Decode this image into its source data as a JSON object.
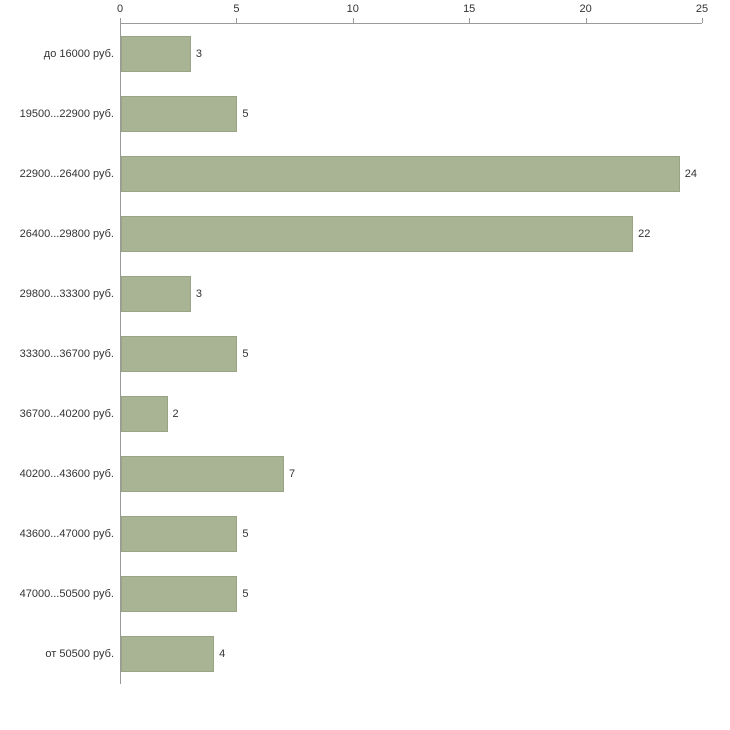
{
  "chart_data": {
    "type": "bar",
    "orientation": "horizontal",
    "title": "",
    "xlabel": "",
    "ylabel": "",
    "legend": "none",
    "grid": "off",
    "axis_position": "top",
    "xlim": [
      0,
      25
    ],
    "xticks": [
      "0",
      "5",
      "10",
      "15",
      "20",
      "25"
    ],
    "xtick_values": [
      0,
      5,
      10,
      15,
      20,
      25
    ],
    "categories": [
      "до 16000 руб.",
      "19500...22900 руб.",
      "22900...26400 руб.",
      "26400...29800 руб.",
      "29800...33300 руб.",
      "33300...36700 руб.",
      "36700...40200 руб.",
      "40200...43600 руб.",
      "43600...47000 руб.",
      "47000...50500 руб.",
      "от 50500 руб."
    ],
    "values": [
      3,
      5,
      24,
      22,
      3,
      5,
      2,
      7,
      5,
      5,
      4
    ],
    "bar_color": "#a9b494",
    "bar_border_color": "#98a483",
    "axis_color": "#9a9a9a"
  }
}
